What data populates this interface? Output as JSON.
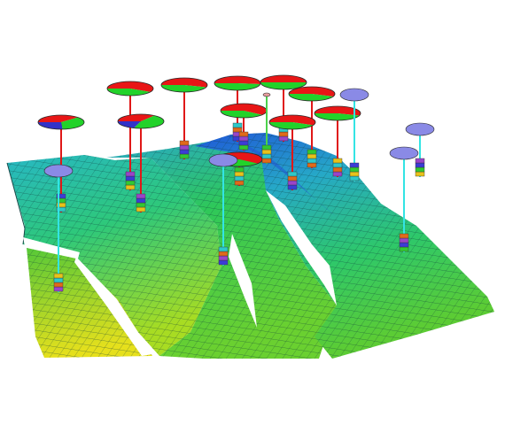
{
  "colors": {
    "background": "#ffffff",
    "surface_low": "#e6e01c",
    "surface_mid": "#2ec83a",
    "surface_high": "#27b7c4",
    "surface_deep": "#1f6fd8",
    "grid_line": "#0d3a3a",
    "producer_pipe": "#e01818",
    "injector_pipe": "#33e4e4",
    "gas_pipe": "#4cd24c",
    "pie_red": "#e81616",
    "pie_green": "#22d22a",
    "pie_blue": "#3232c8",
    "injector_disc": "#8a8ae6",
    "disc_edge": "#2a2a2a"
  },
  "wells": [
    {
      "kind": "producer",
      "pie": [
        0.58,
        0.42,
        0.0
      ]
    },
    {
      "kind": "producer",
      "pie": [
        0.55,
        0.45,
        0.0
      ]
    },
    {
      "kind": "producer",
      "pie": [
        0.52,
        0.48,
        0.0
      ]
    },
    {
      "kind": "producer",
      "pie": [
        0.5,
        0.5,
        0.0
      ]
    },
    {
      "kind": "producer",
      "pie": [
        0.56,
        0.44,
        0.0
      ]
    },
    {
      "kind": "producer",
      "pie": [
        0.38,
        0.36,
        0.26
      ]
    },
    {
      "kind": "producer",
      "pie": [
        0.35,
        0.45,
        0.2
      ]
    },
    {
      "kind": "producer",
      "pie": [
        0.6,
        0.4,
        0.0
      ]
    },
    {
      "kind": "producer",
      "pie": [
        0.57,
        0.43,
        0.0
      ]
    },
    {
      "kind": "producer",
      "pie": [
        0.55,
        0.45,
        0.0
      ]
    },
    {
      "kind": "producer",
      "pie": [
        0.6,
        0.4,
        0.0
      ]
    },
    {
      "kind": "injector"
    },
    {
      "kind": "injector"
    },
    {
      "kind": "injector"
    },
    {
      "kind": "injector"
    },
    {
      "kind": "injector"
    },
    {
      "kind": "gas"
    }
  ]
}
